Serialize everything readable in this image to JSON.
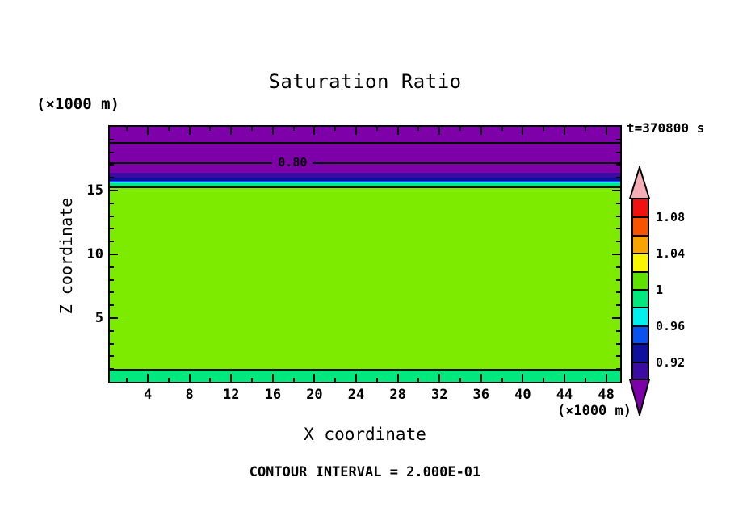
{
  "title": "Saturation Ratio",
  "time_label": "t=370800 s",
  "footer_note": "CONTOUR INTERVAL = 2.000E-01",
  "axes": {
    "x_label": "X coordinate",
    "y_label": "Z coordinate",
    "x_units": "(×1000 m)",
    "y_units": "(×1000 m)"
  },
  "chart_data": {
    "type": "heatmap",
    "title": "Saturation Ratio",
    "xlabel": "X coordinate",
    "ylabel": "Z coordinate",
    "x_units": "(×1000 m)",
    "y_units": "(×1000 m)",
    "time_annotation": "t=370800 s",
    "contour_interval_note": "CONTOUR INTERVAL = 2.000E-01",
    "contour_interval_value": "2.000E-01",
    "xlim": [
      0.35,
      49.35
    ],
    "ylim": [
      0,
      20
    ],
    "grid": false,
    "x_major_ticks": [
      4,
      8,
      12,
      16,
      20,
      24,
      28,
      32,
      36,
      40,
      44,
      48
    ],
    "x_minor_ticks": [
      2,
      6,
      10,
      14,
      18,
      22,
      26,
      30,
      34,
      38,
      42,
      46
    ],
    "y_major_ticks": [
      5,
      10,
      15
    ],
    "y_minor_ticks": [
      1,
      2,
      3,
      4,
      6,
      7,
      8,
      9,
      11,
      12,
      13,
      14,
      16,
      17,
      18,
      19
    ],
    "bands_top_to_bottom": [
      {
        "z_from": 16.42,
        "z_to": 20.0,
        "color": "#7D00A8"
      },
      {
        "z_from": 16.01,
        "z_to": 16.42,
        "color": "#3B0BA3"
      },
      {
        "z_from": 15.79,
        "z_to": 16.01,
        "color": "#10109E"
      },
      {
        "z_from": 15.66,
        "z_to": 15.79,
        "color": "#0A52F0"
      },
      {
        "z_from": 15.57,
        "z_to": 15.66,
        "color": "#00EFEF"
      },
      {
        "z_from": 15.25,
        "z_to": 15.57,
        "color": "#00E87E"
      },
      {
        "z_from": 0.98,
        "z_to": 15.25,
        "color": "#7DEB00"
      },
      {
        "z_from": 0.0,
        "z_to": 0.98,
        "color": "#00E87E"
      }
    ],
    "contour_lines": [
      {
        "z": 18.73,
        "label": ""
      },
      {
        "z": 17.15,
        "label": "0.80",
        "label_x": 17.9,
        "label_bg": "#7D00A8"
      },
      {
        "z": 15.25,
        "label": ""
      },
      {
        "z": 0.98,
        "label": ""
      }
    ],
    "colorbar": {
      "orientation": "vertical",
      "segment_colors_top_to_bottom": [
        "#F01111",
        "#FA5300",
        "#F9A300",
        "#FAF500",
        "#5FE200",
        "#00E87E",
        "#00EFEF",
        "#0A52F0",
        "#10109E",
        "#3B0BA3"
      ],
      "labels": [
        {
          "text": "1.08",
          "boundary": 1
        },
        {
          "text": "1.04",
          "boundary": 3
        },
        {
          "text": "1",
          "boundary": 5
        },
        {
          "text": "0.96",
          "boundary": 7
        },
        {
          "text": "0.92",
          "boundary": 9
        }
      ],
      "top_arrow_color": "#F5AEB6",
      "bottom_arrow_color": "#7D00A8"
    }
  }
}
